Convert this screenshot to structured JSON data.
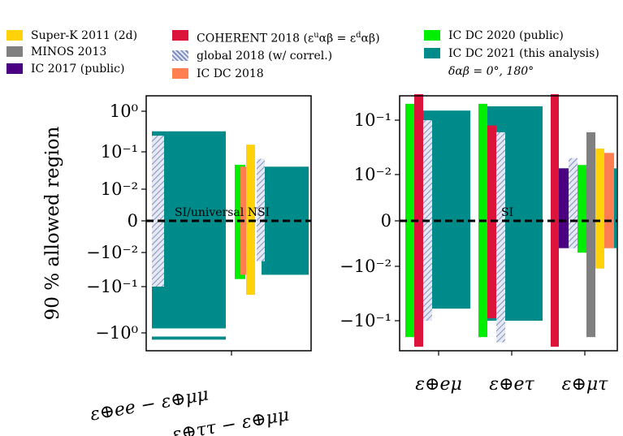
{
  "legend": {
    "items": [
      {
        "label": "Super-K 2011 (2d)",
        "color": "#ffd20a"
      },
      {
        "label": "MINOS 2013",
        "color": "#808080"
      },
      {
        "label": "IC 2017 (public)",
        "color": "#4b0082"
      },
      {
        "label": "COHERENT 2018 (ε",
        "label_tail": "αβ = ε",
        "label_tail2": "αβ)",
        "color": "#dc143c"
      },
      {
        "label": "global 2018 (w/ correl.)",
        "color": "#aab4d8",
        "pattern": "hatch"
      },
      {
        "label": "IC DC 2018",
        "color": "#ff7f50"
      },
      {
        "label": "IC DC 2020 (public)",
        "color": "#00ee00"
      },
      {
        "label": "IC DC 2021 (this analysis)",
        "color": "#008b8b"
      }
    ],
    "coherent_sup_u": "u",
    "coherent_sup_d": "d"
  },
  "delta_note": "δαβ = 0°, 180°",
  "chart_data": [
    {
      "type": "bar",
      "ylabel": "90 % allowed region",
      "yscale": "symlog",
      "y_ticks": [
        "10⁰",
        "10⁻¹",
        "10⁻²",
        "0",
        "−10⁻²",
        "−10⁻¹",
        "−10⁰"
      ],
      "x_ticks": [
        "ε⊕ee − ε⊕μμ",
        "ε⊕ττ − ε⊕μμ"
      ],
      "annotation": "SI/universal NSI",
      "series": [
        {
          "name": "IC DC 2021 (this analysis)",
          "category": "ε⊕ee − ε⊕μμ",
          "ranges": [
            [
              -0.8,
              0.32
            ],
            [
              -1.4,
              -1.2
            ]
          ]
        },
        {
          "name": "global 2018 (w/ correl.)",
          "category": "ε⊕ee − ε⊕μμ",
          "ranges": [
            [
              -0.1,
              0.25
            ]
          ]
        },
        {
          "name": "IC DC 2021 (this analysis)",
          "category": "ε⊕ττ − ε⊕μμ",
          "ranges": [
            [
              -0.045,
              0.04
            ]
          ]
        },
        {
          "name": "IC DC 2020 (public)",
          "category": "ε⊕ττ − ε⊕μμ",
          "ranges": [
            [
              -0.06,
              0.045
            ]
          ]
        },
        {
          "name": "IC DC 2018",
          "category": "ε⊕ττ − ε⊕μμ",
          "ranges": [
            [
              -0.045,
              0.04
            ]
          ]
        },
        {
          "name": "Super-K 2011 (2d)",
          "category": "ε⊕ττ − ε⊕μμ",
          "ranges": [
            [
              -0.15,
              0.15
            ]
          ]
        },
        {
          "name": "global 2018 (w/ correl.)",
          "category": "ε⊕ττ − ε⊕μμ",
          "ranges": [
            [
              -0.018,
              0.065
            ]
          ]
        }
      ]
    },
    {
      "type": "bar",
      "yscale": "symlog",
      "y_ticks": [
        "10⁻¹",
        "10⁻²",
        "0",
        "−10⁻²",
        "−10⁻¹"
      ],
      "x_ticks": [
        "ε⊕eμ",
        "ε⊕eτ",
        "ε⊕μτ"
      ],
      "annotation": "SI",
      "series": [
        {
          "name": "IC DC 2020 (public)",
          "category": "ε⊕eμ",
          "ranges": [
            [
              -0.2,
              0.2
            ]
          ]
        },
        {
          "name": "COHERENT 2018 (εuαβ = εdαβ)",
          "category": "ε⊕eμ",
          "ranges": [
            [
              -0.3,
              0.3
            ]
          ]
        },
        {
          "name": "global 2018 (w/ correl.)",
          "category": "ε⊕eμ",
          "ranges": [
            [
              -0.1,
              0.1
            ]
          ]
        },
        {
          "name": "IC DC 2021 (this analysis)",
          "category": "ε⊕eμ",
          "ranges": [
            [
              -0.06,
              0.15
            ]
          ]
        },
        {
          "name": "IC DC 2020 (public)",
          "category": "ε⊕eτ",
          "ranges": [
            [
              -0.2,
              0.2
            ]
          ]
        },
        {
          "name": "COHERENT 2018 (εuαβ = εdαβ)",
          "category": "ε⊕eτ",
          "ranges": [
            [
              -0.09,
              0.08
            ]
          ]
        },
        {
          "name": "global 2018 (w/ correl.)",
          "category": "ε⊕eτ",
          "ranges": [
            [
              -0.25,
              0.06
            ]
          ]
        },
        {
          "name": "IC DC 2021 (this analysis)",
          "category": "ε⊕eτ",
          "ranges": [
            [
              -0.1,
              0.18
            ]
          ]
        },
        {
          "name": "COHERENT 2018 (εuαβ = εdαβ)",
          "category": "ε⊕μτ",
          "ranges": [
            [
              -0.3,
              0.3
            ]
          ]
        },
        {
          "name": "IC 2017 (public)",
          "category": "ε⊕μτ",
          "ranges": [
            [
              -0.006,
              0.013
            ]
          ]
        },
        {
          "name": "global 2018 (w/ correl.)",
          "category": "ε⊕μτ",
          "ranges": [
            [
              -0.006,
              0.02
            ]
          ]
        },
        {
          "name": "IC DC 2020 (public)",
          "category": "ε⊕μτ",
          "ranges": [
            [
              -0.007,
              0.015
            ]
          ]
        },
        {
          "name": "MINOS 2013",
          "category": "ε⊕μτ",
          "ranges": [
            [
              -0.2,
              0.06
            ]
          ]
        },
        {
          "name": "Super-K 2011 (2d)",
          "category": "ε⊕μτ",
          "ranges": [
            [
              -0.011,
              0.03
            ]
          ]
        },
        {
          "name": "IC DC 2018",
          "category": "ε⊕μτ",
          "ranges": [
            [
              -0.006,
              0.025
            ]
          ]
        },
        {
          "name": "IC DC 2021 (this analysis)",
          "category": "ε⊕μτ",
          "ranges": [
            [
              -0.006,
              0.013
            ]
          ]
        }
      ]
    }
  ]
}
